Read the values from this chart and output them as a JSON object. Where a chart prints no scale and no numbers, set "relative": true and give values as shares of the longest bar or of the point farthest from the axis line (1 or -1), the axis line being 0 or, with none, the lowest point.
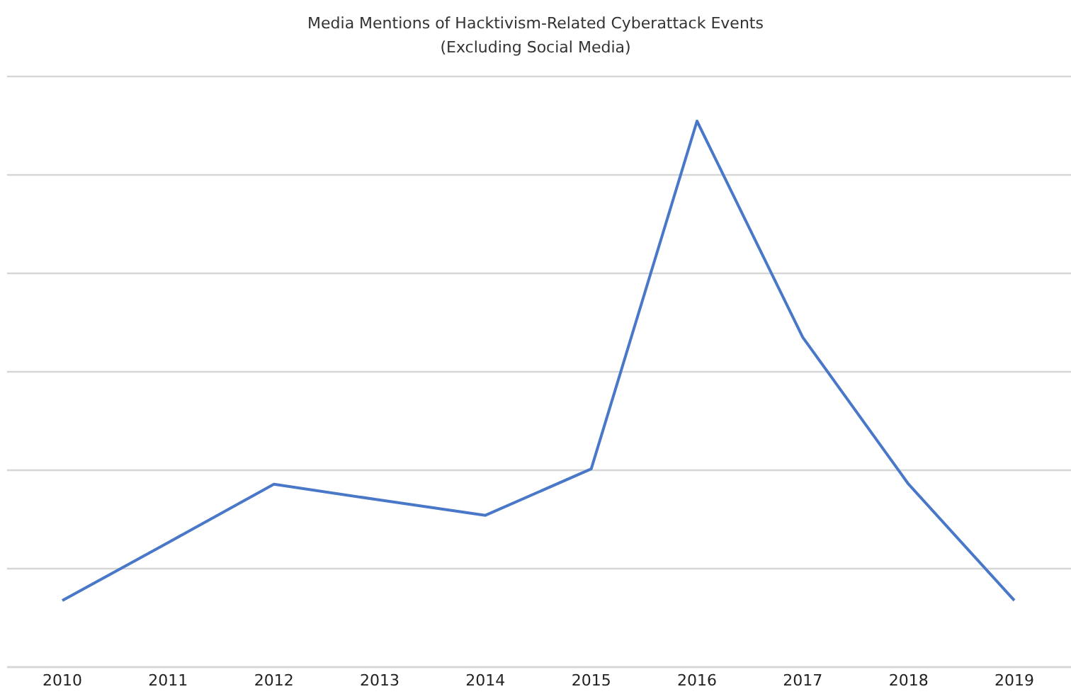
{
  "chart_data": {
    "type": "line",
    "title": "Media Mentions of Hacktivism-Related Cyberattack Events",
    "subtitle": "(Excluding Social Media)",
    "relative": true,
    "grid": true,
    "marker": "none",
    "line_style": "solid",
    "categories": [
      "2010",
      "2011",
      "2012",
      "2013",
      "2014",
      "2015",
      "2016",
      "2017",
      "2018",
      "2019"
    ],
    "series": [
      {
        "color": "#4a78c8",
        "values": [
          0.122,
          0.228,
          0.335,
          0.306,
          0.278,
          0.363,
          1,
          0.604,
          0.335,
          0.122
        ]
      }
    ]
  }
}
